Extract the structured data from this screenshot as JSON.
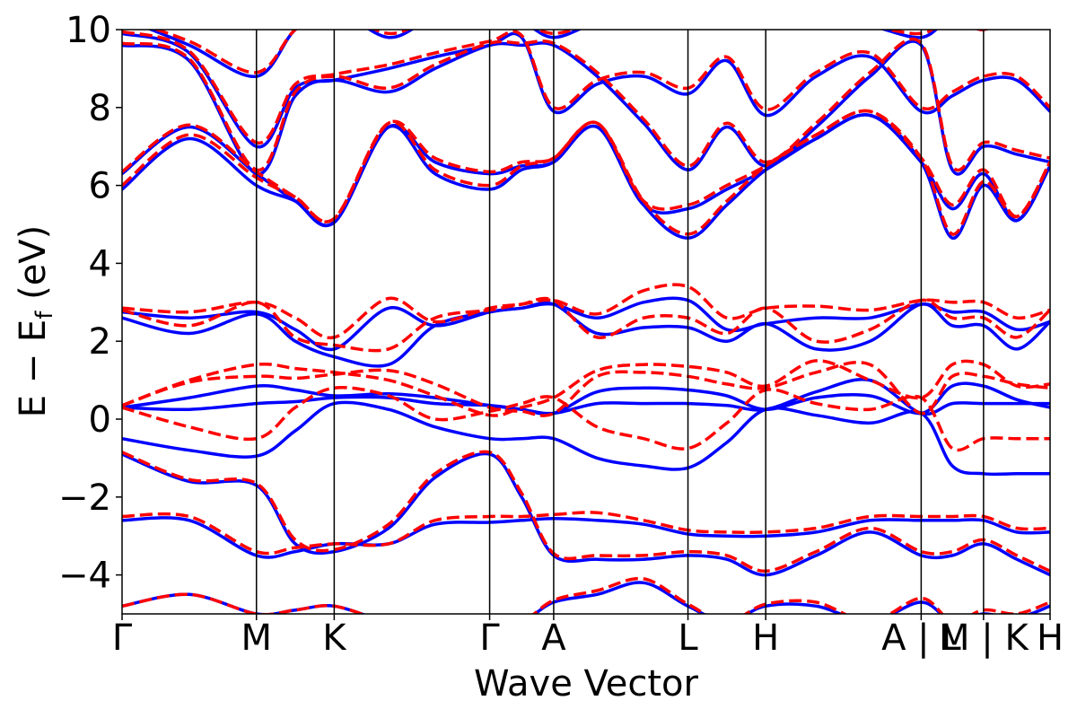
{
  "chart_data": {
    "type": "line",
    "title": "",
    "xlabel": "Wave Vector",
    "ylabel": "E − E",
    "ylabel_sub": "f",
    "ylabel_unit": " (eV)",
    "ylim": [
      -5,
      10
    ],
    "yticks": [
      {
        "value": 10,
        "label": "10"
      },
      {
        "value": 8,
        "label": "8"
      },
      {
        "value": 6,
        "label": "6"
      },
      {
        "value": 4,
        "label": "4"
      },
      {
        "value": 2,
        "label": "2"
      },
      {
        "value": 0,
        "label": "0"
      },
      {
        "value": -2,
        "label": "−2"
      },
      {
        "value": -4,
        "label": "−4"
      }
    ],
    "xlim": [
      0,
      1
    ],
    "kpoints": [
      {
        "label": "Γ",
        "x": 0.0
      },
      {
        "label": "M",
        "x": 0.1448
      },
      {
        "label": "K",
        "x": 0.2286
      },
      {
        "label": "Γ",
        "x": 0.3961
      },
      {
        "label": "A",
        "x": 0.4651
      },
      {
        "label": "L",
        "x": 0.6098
      },
      {
        "label": "H",
        "x": 0.6936
      },
      {
        "label": "A | L",
        "x": 0.8611
      },
      {
        "label": "M | K",
        "x": 0.9283
      },
      {
        "label": "H",
        "x": 1.0
      }
    ],
    "grid": false,
    "legend": "none",
    "colors": {
      "series_a": "#0000ff",
      "series_b": "#ff0000"
    },
    "x": [
      0.0,
      0.0724,
      0.1448,
      0.1867,
      0.2286,
      0.2872,
      0.3372,
      0.3961,
      0.4306,
      0.4651,
      0.512,
      0.562,
      0.6098,
      0.6517,
      0.6936,
      0.748,
      0.806,
      0.8611,
      0.8947,
      0.9283,
      0.9642,
      1.0
    ],
    "series": [
      {
        "style": "solid",
        "color": "#0000ff",
        "bands": [
          [
            -4.8,
            -4.5,
            -5.0,
            -4.9,
            -4.8,
            -5.2,
            -5.2,
            -5.2,
            -5.2,
            -4.7,
            -4.5,
            -4.2,
            -4.8,
            -5.2,
            -4.8,
            -4.8,
            -5.2,
            -4.7,
            -5.2,
            -5.0,
            -5.1,
            -4.8
          ],
          [
            -2.6,
            -2.6,
            -3.5,
            -3.4,
            -3.2,
            -3.2,
            -2.7,
            -2.65,
            -2.6,
            -2.55,
            -2.6,
            -2.7,
            -2.95,
            -3.0,
            -3.0,
            -2.9,
            -2.6,
            -2.6,
            -2.6,
            -2.6,
            -2.9,
            -2.9
          ],
          [
            -0.9,
            -1.6,
            -1.7,
            -3.2,
            -3.4,
            -2.8,
            -1.5,
            -0.9,
            -2.0,
            -3.5,
            -3.6,
            -3.6,
            -3.5,
            -3.6,
            -4.0,
            -3.5,
            -2.9,
            -3.5,
            -3.5,
            -3.2,
            -3.6,
            -4.0
          ],
          [
            -0.5,
            -0.8,
            -0.95,
            -0.3,
            0.4,
            0.25,
            -0.2,
            -0.5,
            -0.5,
            -0.5,
            -1.0,
            -1.2,
            -1.25,
            -0.6,
            0.25,
            0.1,
            -0.1,
            0.15,
            -1.2,
            -1.4,
            -1.4,
            -1.4
          ],
          [
            0.3,
            0.25,
            0.4,
            0.45,
            0.55,
            0.55,
            0.4,
            0.35,
            0.25,
            0.15,
            0.4,
            0.4,
            0.4,
            0.35,
            0.25,
            0.7,
            1.0,
            0.15,
            0.4,
            0.4,
            0.4,
            0.4
          ],
          [
            0.3,
            0.55,
            0.85,
            0.75,
            0.6,
            0.65,
            0.55,
            0.35,
            0.25,
            0.15,
            0.7,
            0.8,
            0.75,
            0.6,
            0.25,
            0.55,
            0.6,
            0.15,
            0.85,
            0.85,
            0.5,
            0.3
          ],
          [
            2.6,
            2.2,
            2.7,
            2.0,
            1.6,
            1.4,
            2.4,
            2.75,
            2.85,
            2.95,
            2.2,
            2.35,
            2.35,
            2.0,
            2.45,
            1.8,
            2.0,
            2.95,
            2.4,
            2.4,
            1.8,
            2.5
          ],
          [
            2.75,
            2.6,
            2.75,
            2.3,
            1.8,
            2.85,
            2.4,
            2.75,
            2.85,
            2.95,
            2.6,
            3.0,
            3.05,
            2.3,
            2.45,
            2.6,
            2.6,
            2.95,
            2.75,
            2.75,
            2.3,
            2.5
          ],
          [
            5.9,
            7.2,
            6.0,
            5.6,
            5.05,
            7.5,
            6.3,
            5.9,
            6.4,
            6.6,
            7.5,
            5.5,
            4.65,
            5.5,
            6.4,
            7.2,
            7.8,
            6.6,
            4.65,
            6.0,
            5.1,
            6.5
          ],
          [
            6.3,
            7.5,
            6.3,
            5.6,
            5.05,
            7.5,
            6.6,
            6.3,
            6.5,
            6.6,
            7.5,
            5.5,
            5.4,
            5.9,
            6.4,
            7.2,
            7.8,
            6.6,
            5.4,
            6.3,
            5.1,
            6.5
          ],
          [
            9.6,
            9.2,
            6.3,
            8.3,
            8.7,
            8.4,
            9.0,
            9.6,
            9.6,
            9.6,
            8.8,
            7.6,
            6.4,
            7.5,
            6.5,
            7.5,
            8.8,
            9.6,
            6.4,
            7.0,
            6.8,
            6.6
          ],
          [
            9.9,
            9.4,
            7.0,
            8.5,
            8.7,
            9.0,
            9.3,
            9.6,
            9.8,
            7.9,
            8.6,
            8.8,
            8.35,
            9.2,
            7.8,
            8.8,
            9.3,
            7.9,
            8.3,
            8.7,
            8.7,
            7.9
          ],
          [
            10.3,
            9.6,
            8.8,
            10.0,
            10.5,
            9.8,
            10.3,
            10.3,
            10.2,
            9.8,
            10.2,
            10.5,
            10.4,
            10.4,
            10.1,
            10.3,
            10.1,
            9.8,
            10.3,
            10.0,
            10.5,
            10.5
          ]
        ]
      },
      {
        "style": "dashed",
        "color": "#ff0000",
        "bands": [
          [
            -4.8,
            -4.5,
            -5.0,
            -4.9,
            -4.8,
            -5.2,
            -5.2,
            -5.2,
            -5.2,
            -4.65,
            -4.4,
            -4.1,
            -4.75,
            -5.2,
            -4.75,
            -4.7,
            -5.2,
            -4.6,
            -5.2,
            -4.9,
            -5.0,
            -4.7
          ],
          [
            -2.5,
            -2.5,
            -3.4,
            -3.3,
            -3.2,
            -3.2,
            -2.6,
            -2.5,
            -2.5,
            -2.45,
            -2.4,
            -2.6,
            -2.85,
            -2.9,
            -2.9,
            -2.8,
            -2.5,
            -2.5,
            -2.5,
            -2.5,
            -2.8,
            -2.8
          ],
          [
            -0.85,
            -1.55,
            -1.65,
            -3.1,
            -3.35,
            -2.7,
            -1.4,
            -0.85,
            -1.9,
            -3.45,
            -3.5,
            -3.5,
            -3.4,
            -3.5,
            -3.9,
            -3.4,
            -2.8,
            -3.4,
            -3.4,
            -3.1,
            -3.5,
            -3.9
          ],
          [
            0.3,
            -0.2,
            -0.5,
            0.3,
            0.8,
            0.6,
            0.0,
            0.2,
            0.4,
            0.55,
            -0.2,
            -0.5,
            -0.75,
            -0.1,
            0.75,
            0.4,
            0.25,
            0.55,
            -0.75,
            -0.5,
            -0.5,
            -0.5
          ],
          [
            0.35,
            0.95,
            1.1,
            1.05,
            1.15,
            1.25,
            0.9,
            0.3,
            0.2,
            0.15,
            1.1,
            1.2,
            1.1,
            0.9,
            0.8,
            1.2,
            1.4,
            0.15,
            1.1,
            1.1,
            0.9,
            0.8
          ],
          [
            0.35,
            1.0,
            1.4,
            1.3,
            1.2,
            1.0,
            0.6,
            0.1,
            0.3,
            0.55,
            1.25,
            1.4,
            1.35,
            1.2,
            0.85,
            1.5,
            1.0,
            0.55,
            1.4,
            1.4,
            0.85,
            0.9
          ],
          [
            2.8,
            2.4,
            3.0,
            2.1,
            1.9,
            1.8,
            2.6,
            2.8,
            2.95,
            3.05,
            2.1,
            2.6,
            2.6,
            2.2,
            2.85,
            2.0,
            2.3,
            3.05,
            2.6,
            2.6,
            2.1,
            2.8
          ],
          [
            2.85,
            2.75,
            3.0,
            2.6,
            2.1,
            3.1,
            2.5,
            2.85,
            2.95,
            3.05,
            2.7,
            3.3,
            3.4,
            2.6,
            2.85,
            2.9,
            2.8,
            3.05,
            3.0,
            3.0,
            2.6,
            2.8
          ],
          [
            6.0,
            7.3,
            6.2,
            5.7,
            5.15,
            7.6,
            6.4,
            6.0,
            6.5,
            6.7,
            7.6,
            5.6,
            4.75,
            5.6,
            6.5,
            7.3,
            7.9,
            6.7,
            4.75,
            6.1,
            5.2,
            6.6
          ],
          [
            6.35,
            7.55,
            6.35,
            5.7,
            5.15,
            7.6,
            6.7,
            6.35,
            6.6,
            6.7,
            7.6,
            5.6,
            5.5,
            6.0,
            6.5,
            7.3,
            7.9,
            6.7,
            5.5,
            6.4,
            5.2,
            6.6
          ],
          [
            9.65,
            9.25,
            6.4,
            8.4,
            8.8,
            8.5,
            9.1,
            9.65,
            9.65,
            9.65,
            8.9,
            7.7,
            6.5,
            7.6,
            6.6,
            7.6,
            8.9,
            9.65,
            6.5,
            7.1,
            6.9,
            6.7
          ],
          [
            9.95,
            9.45,
            7.1,
            8.6,
            8.85,
            9.1,
            9.4,
            9.7,
            9.85,
            8.0,
            8.7,
            8.9,
            8.5,
            9.3,
            7.95,
            8.9,
            9.4,
            8.0,
            8.4,
            8.8,
            8.8,
            8.0
          ],
          [
            10.3,
            9.7,
            8.9,
            10.0,
            10.5,
            9.9,
            10.3,
            10.3,
            10.2,
            9.9,
            10.2,
            10.5,
            10.4,
            10.4,
            10.1,
            10.3,
            10.1,
            9.9,
            10.3,
            10.0,
            10.5,
            10.5
          ]
        ]
      }
    ]
  }
}
